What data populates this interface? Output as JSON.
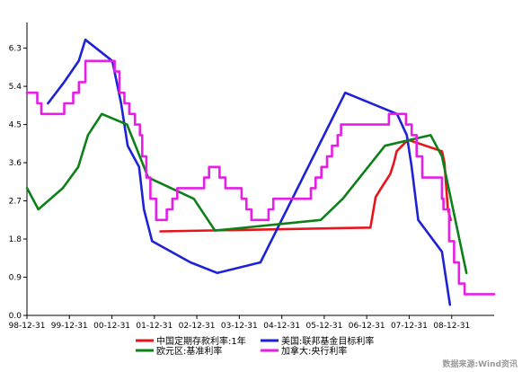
{
  "chart_data": {
    "type": "line",
    "title": "",
    "xlabel": "",
    "ylabel": "",
    "ylim": [
      0,
      6.8
    ],
    "xlim": [
      "1998-12-31",
      "2009-12-31"
    ],
    "y_ticks": [
      "0.0",
      "0.9",
      "1.8",
      "2.7",
      "3.6",
      "4.5",
      "5.4",
      "6.3"
    ],
    "x_ticks": [
      {
        "date": "1998-12-31",
        "label": "98-12-31"
      },
      {
        "date": "1999-12-31",
        "label": "99-12-31"
      },
      {
        "date": "2000-12-31",
        "label": "00-12-31"
      },
      {
        "date": "2001-12-31",
        "label": "01-12-31"
      },
      {
        "date": "2002-12-31",
        "label": "02-12-31"
      },
      {
        "date": "2003-12-31",
        "label": "03-12-31"
      },
      {
        "date": "2004-12-31",
        "label": "04-12-31"
      },
      {
        "date": "2005-12-31",
        "label": "05-12-31"
      },
      {
        "date": "2006-12-31",
        "label": "06-12-31"
      },
      {
        "date": "2007-12-31",
        "label": "07-12-31"
      },
      {
        "date": "2008-12-31",
        "label": "08-12-31"
      }
    ],
    "grid": false,
    "legend_position": "bottom",
    "series": [
      {
        "name": "中国定期存款利率:1年",
        "color": "#e8141c",
        "step": false,
        "points": [
          [
            "2002-02-21",
            1.98
          ],
          [
            "2007-02-01",
            2.07
          ],
          [
            "2007-03-18",
            2.79
          ],
          [
            "2007-05-19",
            3.06
          ],
          [
            "2007-07-21",
            3.33
          ],
          [
            "2007-08-22",
            3.6
          ],
          [
            "2007-09-15",
            3.87
          ],
          [
            "2007-12-21",
            4.14
          ],
          [
            "2008-10-09",
            3.87
          ],
          [
            "2008-10-30",
            3.6
          ],
          [
            "2008-11-27",
            2.52
          ],
          [
            "2008-12-23",
            2.25
          ]
        ]
      },
      {
        "name": "美国:联邦基金目标利率",
        "color": "#1e22d6",
        "step": false,
        "points": [
          [
            "1999-06-30",
            5.0
          ],
          [
            "1999-11-16",
            5.5
          ],
          [
            "2000-03-21",
            6.0
          ],
          [
            "2000-05-16",
            6.5
          ],
          [
            "2001-01-03",
            6.0
          ],
          [
            "2001-03-20",
            5.0
          ],
          [
            "2001-05-15",
            4.0
          ],
          [
            "2001-08-21",
            3.5
          ],
          [
            "2001-10-02",
            2.5
          ],
          [
            "2001-12-11",
            1.75
          ],
          [
            "2002-11-06",
            1.25
          ],
          [
            "2003-06-25",
            1.0
          ],
          [
            "2004-06-30",
            1.25
          ],
          [
            "2005-06-30",
            3.25
          ],
          [
            "2006-06-29",
            5.25
          ],
          [
            "2007-09-18",
            4.75
          ],
          [
            "2007-12-11",
            4.25
          ],
          [
            "2008-01-22",
            3.5
          ],
          [
            "2008-03-18",
            2.25
          ],
          [
            "2008-10-08",
            1.5
          ],
          [
            "2008-12-16",
            0.25
          ]
        ]
      },
      {
        "name": "欧元区:基准利率",
        "color": "#0e8018",
        "step": false,
        "points": [
          [
            "1999-01-01",
            3.0
          ],
          [
            "1999-04-08",
            2.5
          ],
          [
            "1999-11-04",
            3.0
          ],
          [
            "2000-03-16",
            3.5
          ],
          [
            "2000-06-08",
            4.25
          ],
          [
            "2000-10-05",
            4.75
          ],
          [
            "2001-05-10",
            4.5
          ],
          [
            "2001-11-08",
            3.25
          ],
          [
            "2002-12-05",
            2.75
          ],
          [
            "2003-06-05",
            2.0
          ],
          [
            "2005-12-01",
            2.25
          ],
          [
            "2006-06-08",
            2.75
          ],
          [
            "2007-06-06",
            4.0
          ],
          [
            "2008-07-03",
            4.25
          ],
          [
            "2008-10-08",
            3.75
          ],
          [
            "2009-05-07",
            1.0
          ]
        ]
      },
      {
        "name": "加拿大:央行利率",
        "color": "#e61ee6",
        "step": true,
        "points": [
          [
            "1998-12-31",
            5.25
          ],
          [
            "1999-03-30",
            5.0
          ],
          [
            "1999-05-04",
            4.75
          ],
          [
            "1999-11-17",
            5.0
          ],
          [
            "2000-02-02",
            5.25
          ],
          [
            "2000-03-22",
            5.5
          ],
          [
            "2000-05-17",
            6.0
          ],
          [
            "2001-01-23",
            5.75
          ],
          [
            "2001-03-06",
            5.25
          ],
          [
            "2001-04-17",
            5.0
          ],
          [
            "2001-05-29",
            4.75
          ],
          [
            "2001-07-17",
            4.5
          ],
          [
            "2001-08-28",
            4.25
          ],
          [
            "2001-09-17",
            3.75
          ],
          [
            "2001-10-23",
            3.25
          ],
          [
            "2001-11-27",
            2.75
          ],
          [
            "2002-01-15",
            2.25
          ],
          [
            "2002-04-16",
            2.5
          ],
          [
            "2002-06-04",
            2.75
          ],
          [
            "2002-07-16",
            3.0
          ],
          [
            "2003-03-04",
            3.25
          ],
          [
            "2003-04-15",
            3.5
          ],
          [
            "2003-07-15",
            3.25
          ],
          [
            "2003-09-03",
            3.0
          ],
          [
            "2004-01-20",
            2.75
          ],
          [
            "2004-03-02",
            2.5
          ],
          [
            "2004-04-13",
            2.25
          ],
          [
            "2004-09-08",
            2.5
          ],
          [
            "2004-10-19",
            2.75
          ],
          [
            "2005-09-07",
            3.0
          ],
          [
            "2005-10-18",
            3.25
          ],
          [
            "2005-12-06",
            3.5
          ],
          [
            "2006-01-24",
            3.75
          ],
          [
            "2006-03-07",
            4.0
          ],
          [
            "2006-04-25",
            4.25
          ],
          [
            "2006-05-24",
            4.5
          ],
          [
            "2007-07-10",
            4.75
          ],
          [
            "2007-12-04",
            4.5
          ],
          [
            "2008-01-22",
            4.25
          ],
          [
            "2008-03-04",
            3.75
          ],
          [
            "2008-04-22",
            3.25
          ],
          [
            "2008-10-08",
            2.75
          ],
          [
            "2008-10-21",
            2.5
          ],
          [
            "2008-12-09",
            1.75
          ],
          [
            "2009-01-20",
            1.25
          ],
          [
            "2009-03-03",
            0.75
          ],
          [
            "2009-04-21",
            0.5
          ],
          [
            "2009-12-31",
            0.5
          ]
        ]
      }
    ]
  },
  "legend": [
    {
      "label": "中国定期存款利率:1年",
      "color": "#e8141c"
    },
    {
      "label": "美国:联邦基金目标利率",
      "color": "#1e22d6"
    },
    {
      "label": "欧元区:基准利率",
      "color": "#0e8018"
    },
    {
      "label": "加拿大:央行利率",
      "color": "#e61ee6"
    }
  ],
  "source": "数据来源:Wind资讯"
}
